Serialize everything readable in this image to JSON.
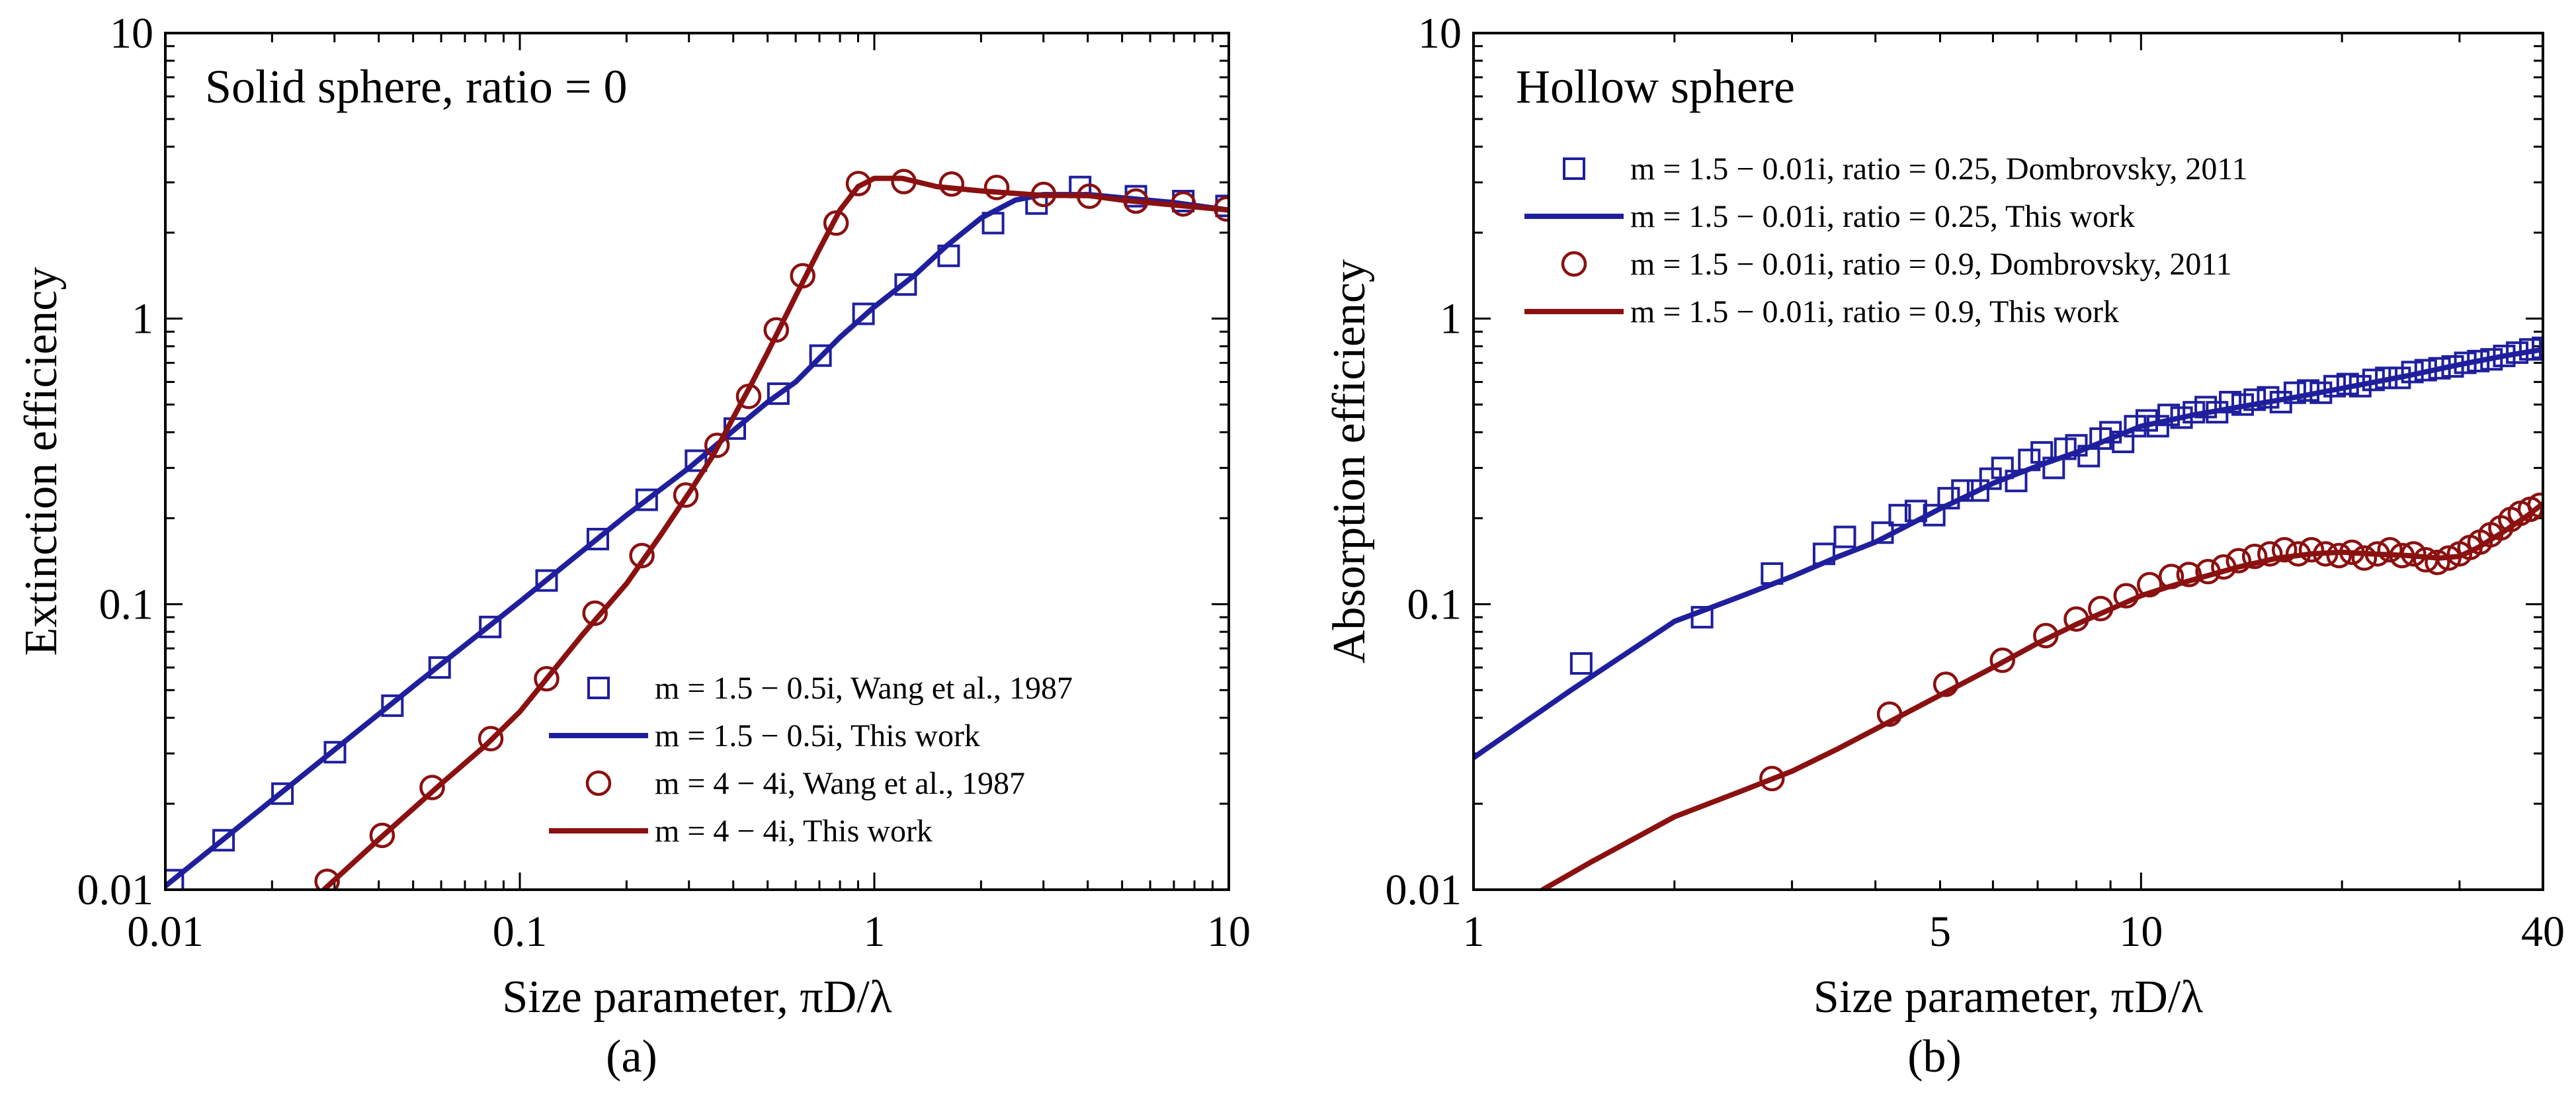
{
  "chart_data": [
    {
      "type": "line",
      "panel": "(a)",
      "title": "Solid sphere, ratio = 0",
      "xlabel": "Size parameter, πD/λ",
      "ylabel": "Extinction efficiency",
      "x_scale": "log",
      "y_scale": "log",
      "xlim": [
        0.01,
        10
      ],
      "ylim": [
        0.01,
        10
      ],
      "x_ticks": [
        "0.01",
        "0.1",
        "1",
        "10"
      ],
      "y_ticks": [
        "0.01",
        "0.1",
        "1",
        "10"
      ],
      "legend_position": "lower-right",
      "colors": {
        "blue": "#1f1f9e",
        "red": "#8b1010"
      },
      "series": [
        {
          "name": "m = 1.5 − 0.5i, Wang et al., 1987",
          "kind": "markers",
          "marker": "square",
          "color": "#1f1f9e",
          "x": [
            0.0105,
            0.0146,
            0.0214,
            0.0301,
            0.0437,
            0.0594,
            0.0825,
            0.119,
            0.166,
            0.228,
            0.314,
            0.404,
            0.536,
            0.705,
            0.932,
            1.226,
            1.621,
            2.163,
            2.868,
            3.807,
            5.47,
            7.44,
            9.85
          ],
          "y": [
            0.0108,
            0.0149,
            0.0217,
            0.0303,
            0.0441,
            0.06,
            0.0832,
            0.121,
            0.169,
            0.232,
            0.318,
            0.412,
            0.546,
            0.742,
            1.039,
            1.316,
            1.659,
            2.16,
            2.529,
            2.89,
            2.683,
            2.58,
            2.481
          ]
        },
        {
          "name": "m = 1.5 − 0.5i, This work",
          "kind": "line",
          "color": "#1f1f9e",
          "x": [
            0.01,
            0.02,
            0.05,
            0.1,
            0.2,
            0.3,
            0.4,
            0.5,
            0.6,
            0.8,
            1.0,
            1.3,
            1.6,
            2.0,
            2.5,
            3.0,
            4.0,
            5.0,
            7.0,
            10.0
          ],
          "y": [
            0.0103,
            0.0206,
            0.0515,
            0.102,
            0.205,
            0.3,
            0.405,
            0.51,
            0.6,
            0.86,
            1.1,
            1.42,
            1.8,
            2.25,
            2.6,
            2.72,
            2.72,
            2.65,
            2.55,
            2.4
          ]
        },
        {
          "name": "m = 4 − 4i, Wang et al., 1987",
          "kind": "markers",
          "marker": "circle",
          "color": "#8b1010",
          "x": [
            0.0286,
            0.0409,
            0.0566,
            0.0828,
            0.119,
            0.163,
            0.221,
            0.294,
            0.36,
            0.442,
            0.529,
            0.628,
            0.78,
            0.902,
            1.211,
            1.652,
            2.214,
            3.003,
            4.044,
            5.47,
            7.44,
            9.85
          ],
          "y": [
            0.0107,
            0.0155,
            0.0228,
            0.0338,
            0.0548,
            0.093,
            0.148,
            0.241,
            0.36,
            0.534,
            0.913,
            1.413,
            2.16,
            2.972,
            3.02,
            2.96,
            2.879,
            2.723,
            2.683,
            2.58,
            2.521,
            2.421
          ]
        },
        {
          "name": "m = 4 − 4i, This work",
          "kind": "line",
          "color": "#8b1010",
          "x": [
            0.028,
            0.04,
            0.06,
            0.08,
            0.1,
            0.15,
            0.2,
            0.25,
            0.3,
            0.35,
            0.4,
            0.45,
            0.5,
            0.6,
            0.7,
            0.8,
            0.9,
            1.0,
            1.2,
            1.5,
            2.0,
            3.0,
            4.0,
            5.0,
            7.0,
            10.0
          ],
          "y": [
            0.01,
            0.015,
            0.0235,
            0.032,
            0.042,
            0.078,
            0.118,
            0.175,
            0.245,
            0.33,
            0.45,
            0.59,
            0.76,
            1.2,
            1.75,
            2.4,
            2.9,
            3.1,
            3.1,
            2.9,
            2.8,
            2.7,
            2.7,
            2.6,
            2.5,
            2.4
          ]
        }
      ]
    },
    {
      "type": "line",
      "panel": "(b)",
      "title": "Hollow sphere",
      "xlabel": "Size parameter, πD/λ",
      "ylabel": "Absorption efficiency",
      "x_scale": "log",
      "y_scale": "log",
      "xlim": [
        1,
        40
      ],
      "ylim": [
        0.01,
        10
      ],
      "x_ticks": [
        "1",
        "5",
        "10",
        "40"
      ],
      "y_ticks": [
        "0.01",
        "0.1",
        "1",
        "10"
      ],
      "legend_position": "upper-left",
      "colors": {
        "blue": "#1f1f9e",
        "red": "#8b1010"
      },
      "series": [
        {
          "name": "m = 1.5 − 0.01i, ratio = 0.25, Dombrovsky, 2011",
          "kind": "markers",
          "marker": "square",
          "color": "#1f1f9e",
          "x": [
            1.45,
            2.2,
            2.8,
            3.35,
            3.6,
            4.1,
            4.35,
            4.6,
            4.9,
            5.15,
            5.4,
            5.7,
            5.95,
            6.2,
            6.5,
            6.8,
            7.1,
            7.4,
            7.7,
            8.0,
            8.35,
            8.7,
            9.0,
            9.4,
            9.8,
            10.2,
            10.6,
            11.0,
            11.5,
            12.0,
            12.5,
            13.0,
            13.6,
            14.2,
            14.8,
            15.5,
            16.2,
            17.0,
            17.8,
            18.6,
            19.5,
            20.4,
            21.3,
            22.3,
            23.3,
            24.4,
            25.5,
            26.7,
            28.0,
            29.3,
            30.6,
            32.0,
            33.5,
            35.0,
            36.6,
            38.3,
            40.0
          ],
          "y": [
            0.062,
            0.09,
            0.128,
            0.15,
            0.172,
            0.178,
            0.205,
            0.212,
            0.205,
            0.235,
            0.25,
            0.25,
            0.275,
            0.3,
            0.27,
            0.32,
            0.34,
            0.3,
            0.35,
            0.36,
            0.33,
            0.38,
            0.4,
            0.37,
            0.42,
            0.44,
            0.42,
            0.46,
            0.45,
            0.47,
            0.49,
            0.47,
            0.51,
            0.5,
            0.52,
            0.53,
            0.51,
            0.55,
            0.56,
            0.55,
            0.58,
            0.59,
            0.58,
            0.61,
            0.62,
            0.62,
            0.65,
            0.66,
            0.67,
            0.68,
            0.7,
            0.71,
            0.72,
            0.74,
            0.76,
            0.78,
            0.79
          ]
        },
        {
          "name": "m = 1.5 − 0.01i, ratio = 0.25, This work",
          "kind": "line",
          "color": "#1f1f9e",
          "x": [
            1.0,
            1.4,
            2.0,
            2.5,
            3.0,
            3.5,
            4.0,
            4.5,
            5.0,
            5.5,
            6.0,
            7.0,
            8.0,
            9.0,
            10.0,
            12.0,
            14.0,
            17.0,
            20.0,
            25.0,
            30.0,
            35.0,
            40.0
          ],
          "y": [
            0.029,
            0.05,
            0.087,
            0.106,
            0.125,
            0.146,
            0.165,
            0.19,
            0.216,
            0.24,
            0.265,
            0.305,
            0.34,
            0.38,
            0.42,
            0.46,
            0.49,
            0.53,
            0.57,
            0.63,
            0.69,
            0.74,
            0.78
          ]
        },
        {
          "name": "m = 1.5 − 0.01i, ratio = 0.9, Dombrovsky, 2011",
          "kind": "markers",
          "marker": "circle",
          "color": "#8b1010",
          "x": [
            2.8,
            4.2,
            5.1,
            6.2,
            7.2,
            8.0,
            8.7,
            9.5,
            10.3,
            11.1,
            11.8,
            12.6,
            13.3,
            14.0,
            14.8,
            15.6,
            16.4,
            17.2,
            18.0,
            18.9,
            19.8,
            20.7,
            21.6,
            22.6,
            23.6,
            24.6,
            25.6,
            26.7,
            27.8,
            28.9,
            30.0,
            31.1,
            32.2,
            33.4,
            34.6,
            35.8,
            37.0,
            38.3,
            39.6
          ],
          "y": [
            0.0245,
            0.0412,
            0.0524,
            0.0636,
            0.0776,
            0.0887,
            0.0965,
            0.107,
            0.117,
            0.125,
            0.127,
            0.13,
            0.135,
            0.142,
            0.147,
            0.15,
            0.155,
            0.15,
            0.155,
            0.15,
            0.148,
            0.152,
            0.145,
            0.15,
            0.155,
            0.148,
            0.15,
            0.143,
            0.14,
            0.145,
            0.15,
            0.158,
            0.165,
            0.175,
            0.185,
            0.198,
            0.208,
            0.215,
            0.222
          ]
        },
        {
          "name": "m = 1.5 − 0.01i, ratio = 0.9, This work",
          "kind": "line",
          "color": "#8b1010",
          "x": [
            1.27,
            1.5,
            2.0,
            2.5,
            3.0,
            3.5,
            4.0,
            5.0,
            6.0,
            7.0,
            8.0,
            9.0,
            10.0,
            11.0,
            12.0,
            14.0,
            16.0,
            18.0,
            20.0,
            22.0,
            25.0,
            28.0,
            30.0,
            32.0,
            35.0,
            38.0,
            40.0
          ],
          "y": [
            0.01,
            0.0125,
            0.018,
            0.022,
            0.026,
            0.031,
            0.0365,
            0.048,
            0.06,
            0.073,
            0.085,
            0.096,
            0.107,
            0.115,
            0.122,
            0.135,
            0.145,
            0.15,
            0.152,
            0.15,
            0.148,
            0.145,
            0.147,
            0.158,
            0.18,
            0.205,
            0.225
          ]
        }
      ]
    }
  ]
}
